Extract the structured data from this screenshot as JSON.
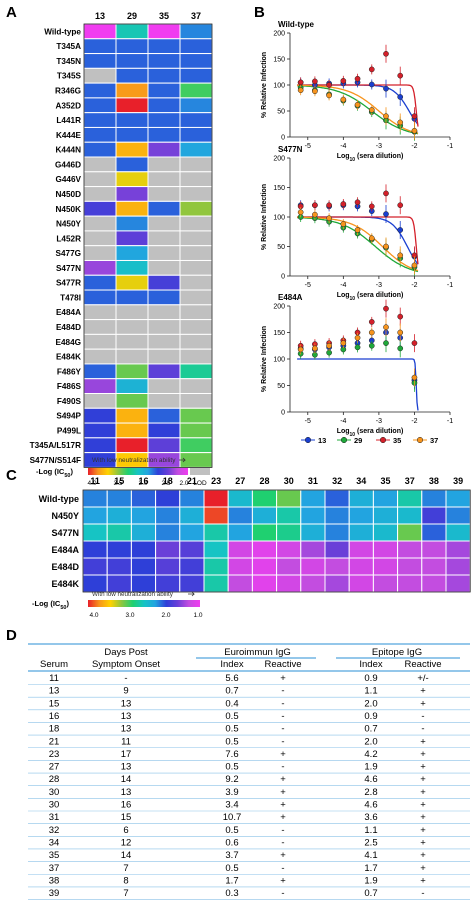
{
  "panels": {
    "A": "A",
    "B": "B",
    "C": "C",
    "D": "D"
  },
  "legend_colors": [
    "#e8202a",
    "#f7941d",
    "#ffd200",
    "#8dc63f",
    "#1fd070",
    "#16c4c4",
    "#22a4e0",
    "#2e3fd8",
    "#6a3fd8",
    "#c34de0",
    "#f03cf0"
  ],
  "chart_data": [
    {
      "type": "heatmap",
      "panel": "A",
      "columns": [
        "13",
        "29",
        "35",
        "37"
      ],
      "rows": [
        "Wild-type",
        "T345A",
        "T345N",
        "T345S",
        "R346G",
        "A352D",
        "L441R",
        "K444E",
        "K444N",
        "G446D",
        "G446V",
        "N450D",
        "N450K",
        "N450Y",
        "L452R",
        "S477G",
        "S477N",
        "S477R",
        "T478I",
        "E484A",
        "E484D",
        "E484G",
        "E484K",
        "F486Y",
        "F486S",
        "F490S",
        "S494P",
        "P499L",
        "T345A/L517R",
        "S477N/S514F"
      ],
      "values": [
        [
          1.3,
          2.7,
          1.3,
          2.3
        ],
        [
          2.2,
          2.2,
          2.2,
          2.2
        ],
        [
          2.2,
          2.2,
          2.2,
          2.2
        ],
        [
          null,
          2.2,
          2.2,
          2.2
        ],
        [
          2.2,
          3.7,
          2.2,
          3.0
        ],
        [
          2.2,
          4.0,
          2.2,
          2.3
        ],
        [
          2.2,
          2.2,
          2.2,
          2.2
        ],
        [
          2.2,
          2.2,
          2.2,
          2.2
        ],
        [
          2.2,
          3.6,
          1.8,
          2.4
        ],
        [
          null,
          2.2,
          null,
          null
        ],
        [
          null,
          3.4,
          null,
          null
        ],
        [
          null,
          1.8,
          null,
          null
        ],
        [
          2.0,
          3.6,
          2.2,
          3.2
        ],
        [
          null,
          2.3,
          null,
          null
        ],
        [
          null,
          1.9,
          null,
          null
        ],
        [
          null,
          2.4,
          null,
          null
        ],
        [
          1.7,
          2.6,
          null,
          null
        ],
        [
          2.2,
          3.4,
          2.0,
          null
        ],
        [
          2.2,
          2.2,
          2.2,
          null
        ],
        [
          null,
          null,
          null,
          null
        ],
        [
          null,
          null,
          null,
          null
        ],
        [
          null,
          null,
          null,
          null
        ],
        [
          null,
          null,
          null,
          null
        ],
        [
          2.2,
          3.1,
          1.9,
          2.8
        ],
        [
          1.7,
          2.5,
          null,
          null
        ],
        [
          null,
          3.1,
          null,
          null
        ],
        [
          2.1,
          3.6,
          2.2,
          3.1
        ],
        [
          2.1,
          3.6,
          2.1,
          3.1
        ],
        [
          2.1,
          4.0,
          1.9,
          3.0
        ],
        [
          2.1,
          3.5,
          1.7,
          3.1
        ]
      ],
      "legend_title": "-Log (IC",
      "legend_sub": "50",
      "legend_title_end": ")",
      "legend_ticks": [
        "4.0",
        "3.5",
        "3.0",
        "2.5",
        "2.0",
        "LOD"
      ],
      "legend_note": "With low neutralization ability"
    },
    {
      "type": "scatter",
      "panel": "B",
      "ylabel": "% Relative Infection",
      "xlabel_pre": "Log",
      "xlabel_sub": "10",
      "xlabel_post": " (sera dilution)",
      "xlim": [
        -5.5,
        -1
      ],
      "ylim": [
        0,
        200
      ],
      "xticks": [
        "-5",
        "-4",
        "-3",
        "-2",
        "-1"
      ],
      "yticks": [
        "0",
        "50",
        "100",
        "150",
        "200"
      ],
      "series_colors": [
        "#1a3fd0",
        "#1fa83a",
        "#d4202a",
        "#f7941d"
      ],
      "legend": [
        "13",
        "29",
        "35",
        "37"
      ],
      "subplots": [
        {
          "title": "Wild-type",
          "series": [
            {
              "name": "13",
              "x": [
                -5.2,
                -4.8,
                -4.4,
                -4.0,
                -3.6,
                -3.2,
                -2.8,
                -2.4,
                -2.0
              ],
              "y": [
                105,
                100,
                103,
                103,
                105,
                101,
                93,
                77,
                35
              ]
            },
            {
              "name": "29",
              "x": [
                -5.2,
                -4.8,
                -4.4,
                -4.0,
                -3.6,
                -3.2,
                -2.8,
                -2.4,
                -2.0
              ],
              "y": [
                95,
                90,
                82,
                70,
                60,
                48,
                32,
                22,
                10
              ]
            },
            {
              "name": "35",
              "x": [
                -5.2,
                -4.8,
                -4.4,
                -4.0,
                -3.6,
                -3.2,
                -2.8,
                -2.4,
                -2.0
              ],
              "y": [
                105,
                107,
                100,
                108,
                112,
                130,
                160,
                118,
                40
              ]
            },
            {
              "name": "37",
              "x": [
                -5.2,
                -4.8,
                -4.4,
                -4.0,
                -3.6,
                -3.2,
                -2.8,
                -2.4,
                -2.0
              ],
              "y": [
                90,
                88,
                80,
                72,
                62,
                52,
                40,
                28,
                12
              ]
            }
          ],
          "fits": [
            {
              "name": "13",
              "top": 100,
              "ic50": -2.15,
              "hill": 2.0
            },
            {
              "name": "29",
              "top": 100,
              "ic50": -3.2,
              "hill": 0.9
            },
            {
              "name": "35",
              "top": 100,
              "ic50": -1.95,
              "hill": 12
            },
            {
              "name": "37",
              "top": 100,
              "ic50": -3.0,
              "hill": 1.0
            }
          ]
        },
        {
          "title": "S477N",
          "series": [
            {
              "name": "13",
              "x": [
                -5.2,
                -4.8,
                -4.4,
                -4.0,
                -3.6,
                -3.2,
                -2.8,
                -2.4,
                -2.0
              ],
              "y": [
                120,
                120,
                118,
                120,
                118,
                110,
                105,
                78,
                33
              ]
            },
            {
              "name": "29",
              "x": [
                -5.2,
                -4.8,
                -4.4,
                -4.0,
                -3.6,
                -3.2,
                -2.8,
                -2.4,
                -2.0
              ],
              "y": [
                100,
                98,
                92,
                82,
                72,
                62,
                48,
                30,
                15
              ]
            },
            {
              "name": "35",
              "x": [
                -5.2,
                -4.8,
                -4.4,
                -4.0,
                -3.6,
                -3.2,
                -2.8,
                -2.4,
                -2.0
              ],
              "y": [
                118,
                120,
                120,
                122,
                125,
                118,
                140,
                120,
                35
              ]
            },
            {
              "name": "37",
              "x": [
                -5.2,
                -4.8,
                -4.4,
                -4.0,
                -3.6,
                -3.2,
                -2.8,
                -2.4,
                -2.0
              ],
              "y": [
                108,
                104,
                98,
                88,
                78,
                64,
                50,
                35,
                18
              ]
            }
          ],
          "fits": [
            {
              "name": "13",
              "top": 100,
              "ic50": -2.2,
              "hill": 2.0
            },
            {
              "name": "29",
              "top": 100,
              "ic50": -3.1,
              "hill": 0.9
            },
            {
              "name": "35",
              "top": 100,
              "ic50": -1.95,
              "hill": 12
            },
            {
              "name": "37",
              "top": 100,
              "ic50": -2.9,
              "hill": 1.0
            }
          ]
        },
        {
          "title": "E484A",
          "series": [
            {
              "name": "13",
              "x": [
                -5.2,
                -4.8,
                -4.4,
                -4.0,
                -3.6,
                -3.2,
                -2.8,
                -2.4,
                -2.0
              ],
              "y": [
                120,
                118,
                122,
                125,
                130,
                135,
                150,
                140,
                60
              ]
            },
            {
              "name": "29",
              "x": [
                -5.2,
                -4.8,
                -4.4,
                -4.0,
                -3.6,
                -3.2,
                -2.8,
                -2.4,
                -2.0
              ],
              "y": [
                110,
                108,
                112,
                118,
                122,
                125,
                130,
                120,
                55
              ]
            },
            {
              "name": "35",
              "x": [
                -5.2,
                -4.8,
                -4.4,
                -4.0,
                -3.6,
                -3.2,
                -2.8,
                -2.4,
                -2.0
              ],
              "y": [
                125,
                128,
                130,
                135,
                150,
                170,
                195,
                180,
                130
              ]
            },
            {
              "name": "37",
              "x": [
                -5.2,
                -4.8,
                -4.4,
                -4.0,
                -3.6,
                -3.2,
                -2.8,
                -2.4,
                -2.0
              ],
              "y": [
                118,
                120,
                125,
                130,
                140,
                150,
                160,
                150,
                65
              ]
            }
          ],
          "fits": [
            {
              "name": "13",
              "top": 100,
              "ic50": -1.95,
              "hill": 30
            }
          ]
        }
      ]
    },
    {
      "type": "heatmap",
      "panel": "C",
      "columns": [
        "11",
        "15",
        "16",
        "18",
        "21",
        "23",
        "27",
        "28",
        "30",
        "31",
        "32",
        "34",
        "35",
        "37",
        "38",
        "39"
      ],
      "rows": [
        "Wild-type",
        "N450Y",
        "S477N",
        "E484A",
        "E484D",
        "E484K"
      ],
      "values": [
        [
          2.1,
          2.1,
          2.0,
          1.9,
          2.1,
          4.0,
          2.4,
          2.8,
          3.0,
          2.2,
          2.0,
          2.3,
          2.2,
          2.6,
          2.1,
          2.2
        ],
        [
          2.2,
          2.3,
          2.2,
          2.1,
          2.3,
          3.9,
          2.1,
          2.3,
          2.6,
          2.2,
          2.1,
          2.2,
          2.3,
          2.4,
          1.8,
          2.1
        ],
        [
          2.5,
          2.6,
          2.3,
          2.1,
          2.2,
          2.6,
          2.2,
          2.8,
          2.7,
          2.3,
          2.1,
          2.3,
          2.4,
          3.0,
          2.0,
          2.4
        ],
        [
          1.9,
          1.9,
          1.9,
          1.6,
          1.7,
          2.5,
          1.2,
          1.1,
          1.2,
          1.4,
          1.6,
          1.2,
          1.2,
          1.3,
          1.3,
          1.4
        ],
        [
          1.8,
          1.8,
          1.9,
          1.7,
          1.8,
          2.6,
          1.2,
          1.1,
          1.3,
          1.2,
          1.3,
          1.2,
          1.2,
          1.3,
          1.3,
          1.4
        ],
        [
          1.9,
          1.8,
          1.9,
          1.8,
          1.8,
          2.6,
          1.3,
          1.1,
          1.2,
          1.3,
          1.4,
          1.2,
          1.3,
          1.3,
          1.3,
          1.4
        ]
      ],
      "legend_title": "-Log (IC",
      "legend_sub": "50",
      "legend_title_end": ")",
      "legend_ticks": [
        "4.0",
        "3.0",
        "2.0",
        "1.0"
      ],
      "legend_note": "With low neutralization ability"
    },
    {
      "type": "table",
      "panel": "D",
      "group_headers": [
        "Days Post",
        "Euroimmun IgG",
        "Epitope IgG"
      ],
      "columns": [
        "Serum",
        "Symptom Onset",
        "Index",
        "Reactive",
        "Index",
        "Reactive"
      ],
      "rows": [
        [
          "11",
          "-",
          "5.6",
          "+",
          "0.9",
          "+/-"
        ],
        [
          "13",
          "9",
          "0.7",
          "-",
          "1.1",
          "+"
        ],
        [
          "15",
          "13",
          "0.4",
          "-",
          "2.0",
          "+"
        ],
        [
          "16",
          "13",
          "0.5",
          "-",
          "0.9",
          "-"
        ],
        [
          "18",
          "13",
          "0.5",
          "-",
          "0.7",
          "-"
        ],
        [
          "21",
          "11",
          "0.5",
          "-",
          "2.0",
          "+"
        ],
        [
          "23",
          "17",
          "7.6",
          "+",
          "4.2",
          "+"
        ],
        [
          "27",
          "13",
          "0.5",
          "-",
          "1.9",
          "+"
        ],
        [
          "28",
          "14",
          "9.2",
          "+",
          "4.6",
          "+"
        ],
        [
          "30",
          "13",
          "3.9",
          "+",
          "2.8",
          "+"
        ],
        [
          "30",
          "16",
          "3.4",
          "+",
          "4.6",
          "+"
        ],
        [
          "31",
          "15",
          "10.7",
          "+",
          "3.6",
          "+"
        ],
        [
          "32",
          "6",
          "0.5",
          "-",
          "1.1",
          "+"
        ],
        [
          "34",
          "12",
          "0.6",
          "-",
          "2.5",
          "+"
        ],
        [
          "35",
          "14",
          "3.7",
          "+",
          "4.1",
          "+"
        ],
        [
          "37",
          "7",
          "0.5",
          "-",
          "1.7",
          "+"
        ],
        [
          "38",
          "8",
          "1.7",
          "+",
          "1.9",
          "+"
        ],
        [
          "39",
          "7",
          "0.3",
          "-",
          "0.7",
          "-"
        ]
      ]
    }
  ]
}
